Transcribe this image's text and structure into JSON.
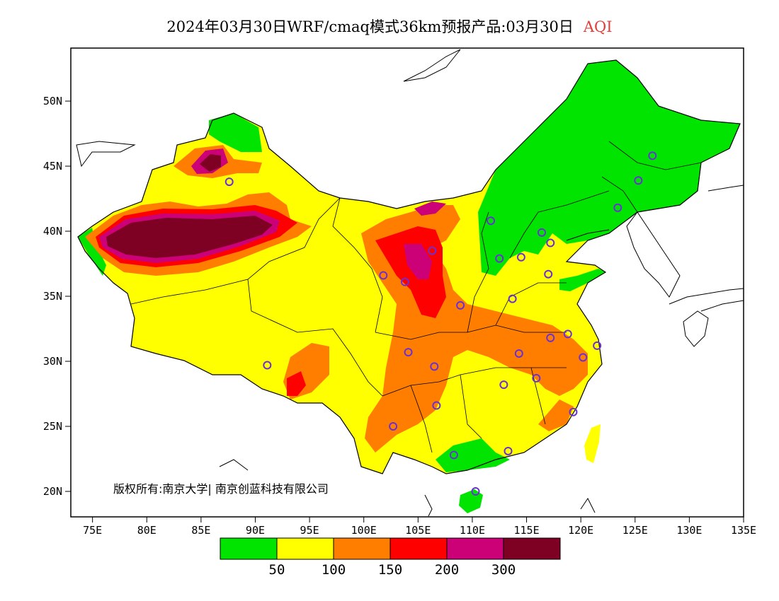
{
  "title": {
    "main": "2024年03月30日WRF/cmaq模式36km预报产品:03月30日",
    "variable": "AQI",
    "variable_color": "#e0403a"
  },
  "axes": {
    "lat_ticks": [
      "50N",
      "45N",
      "40N",
      "35N",
      "30N",
      "25N",
      "20N"
    ],
    "lon_ticks": [
      "75E",
      "80E",
      "85E",
      "90E",
      "95E",
      "100E",
      "105E",
      "110E",
      "115E",
      "120E",
      "125E",
      "130E",
      "135E"
    ]
  },
  "credit": {
    "text": "版权所有:南京大学| 南京创蓝科技有限公司"
  },
  "legend": {
    "colors": [
      "#00e400",
      "#ffff00",
      "#ff7e00",
      "#ff0000",
      "#cc0077",
      "#7e0023"
    ],
    "labels": [
      "50",
      "100",
      "150",
      "200",
      "300"
    ]
  },
  "stations": [
    {
      "lon": 126.6,
      "lat": 45.8
    },
    {
      "lon": 125.3,
      "lat": 43.9
    },
    {
      "lon": 123.4,
      "lat": 41.8
    },
    {
      "lon": 116.4,
      "lat": 39.9
    },
    {
      "lon": 117.2,
      "lat": 39.1
    },
    {
      "lon": 114.5,
      "lat": 38.0
    },
    {
      "lon": 112.5,
      "lat": 37.9
    },
    {
      "lon": 111.7,
      "lat": 40.8
    },
    {
      "lon": 117.0,
      "lat": 36.7
    },
    {
      "lon": 113.7,
      "lat": 34.8
    },
    {
      "lon": 108.9,
      "lat": 34.3
    },
    {
      "lon": 106.3,
      "lat": 38.5
    },
    {
      "lon": 103.8,
      "lat": 36.1
    },
    {
      "lon": 101.8,
      "lat": 36.6
    },
    {
      "lon": 87.6,
      "lat": 43.8
    },
    {
      "lon": 91.1,
      "lat": 29.7
    },
    {
      "lon": 104.1,
      "lat": 30.7
    },
    {
      "lon": 106.5,
      "lat": 29.6
    },
    {
      "lon": 106.7,
      "lat": 26.6
    },
    {
      "lon": 102.7,
      "lat": 25.0
    },
    {
      "lon": 108.3,
      "lat": 22.8
    },
    {
      "lon": 113.3,
      "lat": 23.1
    },
    {
      "lon": 110.3,
      "lat": 20.0
    },
    {
      "lon": 119.3,
      "lat": 26.1
    },
    {
      "lon": 115.9,
      "lat": 28.7
    },
    {
      "lon": 112.9,
      "lat": 28.2
    },
    {
      "lon": 114.3,
      "lat": 30.6
    },
    {
      "lon": 117.2,
      "lat": 31.8
    },
    {
      "lon": 118.8,
      "lat": 32.1
    },
    {
      "lon": 120.2,
      "lat": 30.3
    },
    {
      "lon": 121.5,
      "lat": 31.2
    }
  ]
}
